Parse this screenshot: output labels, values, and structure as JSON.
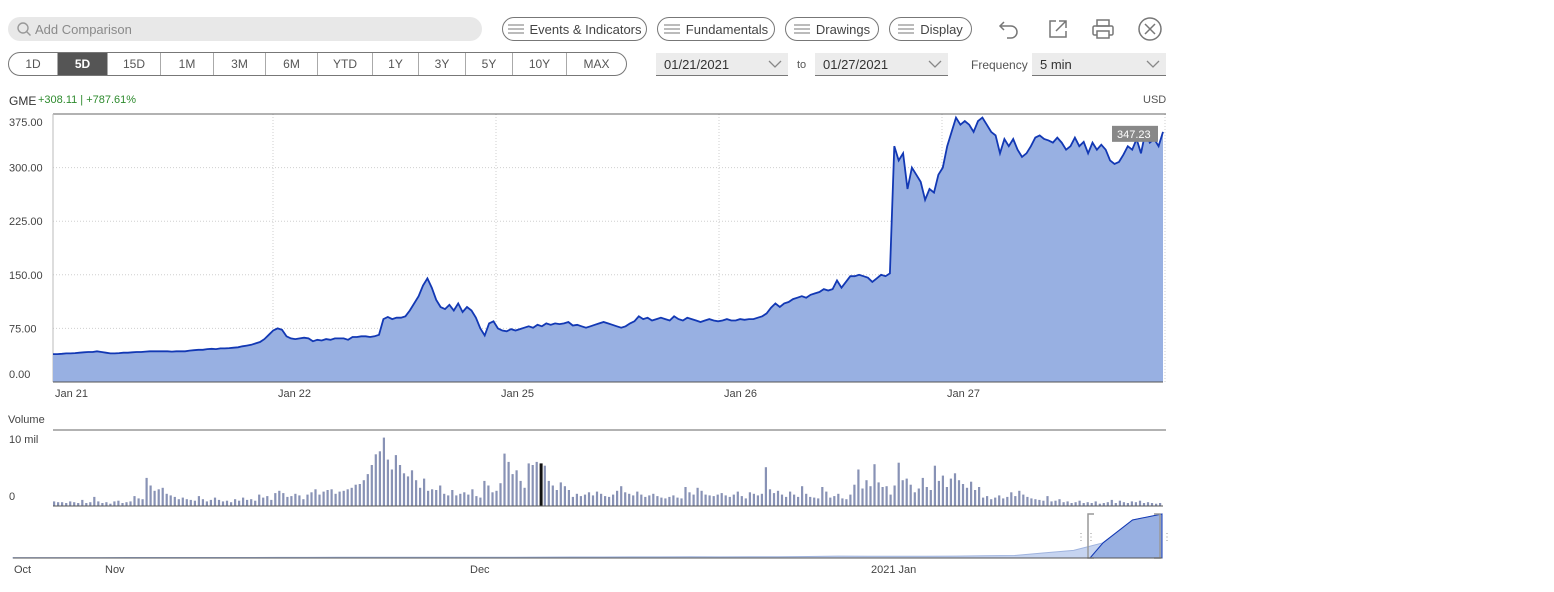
{
  "toolbar": {
    "search_placeholder": "Add Comparison",
    "events_label": "Events & Indicators",
    "fundamentals_label": "Fundamentals",
    "drawings_label": "Drawings",
    "display_label": "Display",
    "icons": [
      "undo-icon",
      "popout-icon",
      "print-icon",
      "close-icon"
    ]
  },
  "ranges": [
    {
      "label": "1D",
      "active": false
    },
    {
      "label": "5D",
      "active": true
    },
    {
      "label": "15D",
      "active": false
    },
    {
      "label": "1M",
      "active": false
    },
    {
      "label": "3M",
      "active": false
    },
    {
      "label": "6M",
      "active": false
    },
    {
      "label": "YTD",
      "active": false
    },
    {
      "label": "1Y",
      "active": false
    },
    {
      "label": "3Y",
      "active": false
    },
    {
      "label": "5Y",
      "active": false
    },
    {
      "label": "10Y",
      "active": false
    },
    {
      "label": "MAX",
      "active": false
    }
  ],
  "dates": {
    "from": "01/21/2021",
    "to_label": "to",
    "to": "01/27/2021"
  },
  "frequency": {
    "label": "Frequency",
    "value": "5 min"
  },
  "quote": {
    "ticker": "GME",
    "change": "+308.11 | +787.61%",
    "currency": "USD",
    "last_price": "347.23"
  },
  "colors": {
    "line": "#1238b4",
    "fill": "#98b0e2",
    "up": "#2e8b2e",
    "volume": "#8892b5"
  },
  "chart_data": [
    {
      "type": "area",
      "series": [
        {
          "name": "GME",
          "values": [
            39,
            39,
            39.5,
            40,
            40,
            40.5,
            41,
            41.5,
            42,
            42,
            43,
            42,
            41,
            40,
            40,
            40.5,
            41,
            41,
            41.5,
            42,
            42,
            42.5,
            43,
            43,
            43,
            43,
            43,
            42.5,
            43,
            43,
            43,
            44,
            44.5,
            45,
            45,
            46,
            46.5,
            46,
            47,
            47,
            47.5,
            48,
            48.5,
            50,
            51,
            52,
            54,
            56,
            60,
            66,
            72,
            75,
            73,
            64,
            61,
            60,
            61,
            62,
            61,
            57,
            59,
            58,
            60,
            59,
            61,
            61,
            61,
            59,
            63,
            63,
            64,
            64,
            63,
            64,
            66,
            88,
            91,
            88,
            90,
            90,
            92,
            100,
            110,
            120,
            135,
            145,
            132,
            115,
            105,
            102,
            108,
            100,
            110,
            98,
            105,
            100,
            90,
            75,
            65,
            82,
            85,
            75,
            72,
            71,
            74,
            72,
            74,
            76,
            78,
            76,
            80,
            78,
            82,
            80,
            82,
            81,
            82,
            84,
            79,
            80,
            78,
            76,
            78,
            80,
            82,
            84,
            82,
            80,
            78,
            76,
            78,
            82,
            85,
            92,
            88,
            90,
            86,
            88,
            90,
            88,
            86,
            92,
            88,
            86,
            90,
            88,
            86,
            84,
            86,
            88,
            86,
            85,
            86,
            88,
            86,
            86,
            88,
            87,
            88,
            88,
            90,
            92,
            96,
            104,
            110,
            105,
            110,
            112,
            116,
            118,
            120,
            118,
            122,
            124,
            126,
            130,
            128,
            130,
            142,
            132,
            140,
            148,
            148,
            150,
            148,
            146,
            140,
            145,
            150,
            148,
            152,
            330,
            310,
            320,
            270,
            300,
            290,
            280,
            255,
            270,
            265,
            290,
            300,
            330,
            350,
            370,
            360,
            365,
            360,
            350,
            365,
            370,
            360,
            350,
            345,
            320,
            340,
            330,
            340,
            325,
            315,
            320,
            330,
            342,
            345,
            340,
            338,
            335,
            342,
            335,
            325,
            330,
            342,
            330,
            336,
            320,
            335,
            325,
            332,
            325,
            310,
            305,
            308,
            318,
            330,
            325,
            340,
            320,
            350,
            335,
            340,
            330,
            350
          ]
        }
      ],
      "x_start": "Jan 21",
      "x_end": "Jan 27",
      "x_ticks": [
        "Jan 21",
        "Jan 22",
        "Jan 25",
        "Jan 26",
        "Jan 27"
      ],
      "y_ticks": [
        "375.00",
        "300.00",
        "225.00",
        "150.00",
        "75.00",
        "0.00"
      ],
      "ylim": [
        0,
        375
      ],
      "grid": true,
      "last_value": 347.23
    },
    {
      "type": "bar",
      "ylabel": "Volume",
      "y_ticks": [
        "10 mil",
        "0"
      ],
      "ylim": [
        0,
        10
      ],
      "values_mil": [
        0.6,
        0.5,
        0.5,
        0.4,
        0.6,
        0.5,
        0.4,
        0.8,
        0.4,
        0.5,
        1.2,
        0.6,
        0.4,
        0.5,
        0.3,
        0.6,
        0.7,
        0.4,
        0.5,
        0.6,
        1.3,
        1.0,
        0.9,
        3.7,
        2.7,
        2.0,
        2.2,
        2.4,
        1.6,
        1.4,
        1.2,
        0.9,
        1.1,
        0.9,
        0.8,
        0.7,
        1.3,
        0.9,
        0.6,
        0.8,
        1.1,
        0.8,
        0.6,
        0.7,
        0.5,
        0.9,
        0.7,
        1.1,
        0.8,
        0.9,
        0.7,
        1.5,
        1.1,
        1.3,
        0.8,
        1.7,
        2.0,
        1.7,
        1.2,
        1.3,
        1.6,
        1.4,
        0.9,
        1.5,
        1.8,
        2.2,
        1.5,
        1.9,
        2.1,
        2.2,
        1.6,
        1.9,
        2.0,
        2.2,
        2.4,
        2.8,
        2.9,
        3.4,
        4.2,
        5.4,
        6.8,
        7.2,
        9.0,
        6.1,
        4.8,
        6.7,
        5.4,
        4.3,
        3.9,
        4.7,
        3.4,
        2.4,
        3.6,
        2.0,
        2.2,
        2.1,
        2.7,
        1.6,
        1.4,
        2.1,
        1.4,
        1.6,
        1.8,
        1.5,
        2.2,
        1.3,
        1.1,
        3.3,
        2.7,
        1.8,
        2.0,
        3.0,
        6.9,
        5.8,
        4.2,
        4.7,
        3.3,
        2.4,
        5.6,
        5.4,
        5.8,
        5.6,
        5.3,
        3.3,
        2.7,
        2.1,
        3.1,
        2.6,
        2.1,
        1.2,
        1.6,
        1.3,
        1.5,
        1.8,
        1.4,
        1.9,
        1.6,
        1.3,
        1.2,
        1.5,
        2.0,
        2.6,
        1.8,
        1.6,
        1.4,
        1.9,
        1.5,
        1.2,
        1.4,
        1.6,
        1.3,
        1.1,
        1.0,
        1.2,
        1.4,
        1.1,
        1.0,
        2.5,
        1.8,
        1.5,
        2.4,
        2.0,
        1.5,
        1.4,
        1.3,
        1.5,
        1.7,
        1.4,
        1.2,
        1.5,
        1.9,
        1.3,
        1.0,
        1.8,
        1.6,
        1.4,
        1.6,
        5.1,
        2.2,
        1.7,
        2.0,
        1.5,
        1.2,
        1.9,
        1.5,
        1.2,
        2.6,
        1.6,
        1.2,
        1.1,
        1.0,
        2.5,
        1.9,
        1.1,
        1.3,
        1.6,
        1.0,
        0.9,
        1.5,
        2.8,
        4.8,
        2.3,
        3.4,
        2.6,
        5.5,
        3.1,
        2.5,
        2.6,
        1.5,
        2.7,
        5.7,
        3.4,
        3.6,
        2.8,
        1.8,
        2.3,
        3.7,
        2.5,
        2.1,
        5.3,
        3.3,
        4.0,
        2.5,
        3.6,
        4.3,
        3.4,
        2.9,
        2.4,
        3.2,
        2.1,
        2.5,
        1.1,
        1.3,
        0.9,
        1.1,
        1.4,
        1.0,
        1.2,
        1.8,
        1.3,
        2.0,
        1.5,
        1.2,
        1.0,
        0.9,
        0.8,
        0.7,
        1.3,
        0.6,
        0.7,
        0.9,
        0.5,
        0.6,
        0.4,
        0.5,
        0.7,
        0.4,
        0.5,
        0.4,
        0.6,
        0.3,
        0.4,
        0.5,
        0.8,
        0.4,
        0.7,
        0.5,
        0.4,
        0.6,
        0.5,
        0.7,
        0.4,
        0.5,
        0.4,
        0.3,
        0.4
      ]
    },
    {
      "type": "area",
      "name": "navigator",
      "x_ticks": [
        "Oct",
        "Nov",
        "Dec",
        "2021 Jan"
      ],
      "values": [
        3,
        3,
        3.2,
        3.5,
        3.8,
        4,
        4,
        4.2,
        4,
        4.5,
        5,
        5.2,
        5.5,
        5.8,
        6,
        6.2,
        6,
        6.5,
        7,
        7.5,
        8,
        8.5,
        9,
        9.5,
        9,
        9.8,
        10,
        12,
        15,
        14,
        13.5,
        14,
        15,
        18,
        20,
        40,
        60,
        120,
        300,
        347
      ]
    }
  ]
}
